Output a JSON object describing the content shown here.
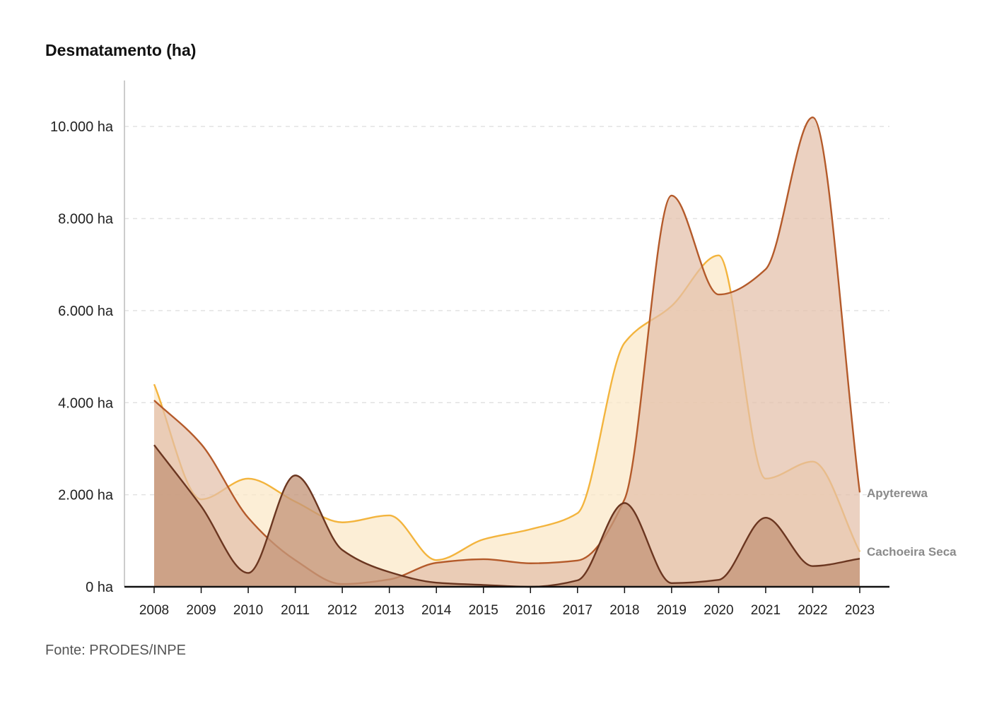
{
  "chart_data": {
    "type": "area",
    "title": "Desmatamento (ha)",
    "source": "Fonte: PRODES/INPE",
    "x": [
      "2008",
      "2009",
      "2010",
      "2011",
      "2012",
      "2013",
      "2014",
      "2015",
      "2016",
      "2017",
      "2018",
      "2019",
      "2020",
      "2021",
      "2022",
      "2023"
    ],
    "ylim": [
      0,
      11000
    ],
    "y_ticks": [
      0,
      2000,
      4000,
      6000,
      8000,
      10000
    ],
    "y_tick_labels": [
      "0 ha",
      "2.000 ha",
      "4.000 ha",
      "6.000 ha",
      "8.000 ha",
      "10.000 ha"
    ],
    "grid": "horizontal dashed",
    "series": [
      {
        "name": "",
        "color_stroke": "#f3b43d",
        "color_fill": "#fbe7c6",
        "values": [
          4400,
          1900,
          2350,
          1850,
          1400,
          1550,
          580,
          1030,
          1250,
          1600,
          5300,
          6100,
          7200,
          2350,
          2720,
          760
        ]
      },
      {
        "name": "Apyterewa",
        "color_stroke": "#b45a2a",
        "color_fill": "#e3bfa9",
        "values": [
          4050,
          3100,
          1500,
          580,
          60,
          160,
          520,
          600,
          510,
          570,
          1900,
          8500,
          6350,
          6900,
          10200,
          2050
        ]
      },
      {
        "name": "Cachoeira Seca",
        "color_stroke": "#6b3620",
        "color_fill": "#c4967a",
        "values": [
          3080,
          1750,
          300,
          2420,
          800,
          320,
          90,
          40,
          0,
          140,
          1820,
          80,
          150,
          1500,
          450,
          610
        ]
      }
    ],
    "end_labels": [
      "Apyterewa",
      "Cachoeira Seca"
    ],
    "legend": "none"
  }
}
